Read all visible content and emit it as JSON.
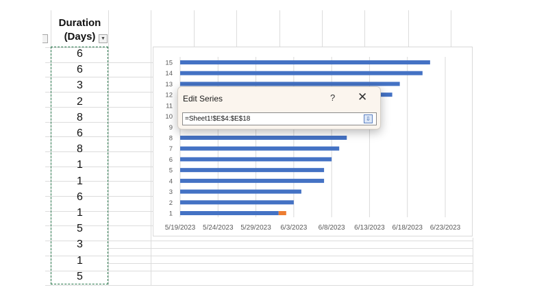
{
  "sheet": {
    "header": {
      "line1": "Duration",
      "line2": "(Days)"
    },
    "durations": [
      "6",
      "6",
      "3",
      "2",
      "8",
      "6",
      "8",
      "1",
      "1",
      "6",
      "1",
      "5",
      "3",
      "1",
      "5"
    ]
  },
  "chart_data": {
    "type": "bar",
    "orientation": "horizontal",
    "stacked": true,
    "categories": [
      "1",
      "2",
      "3",
      "4",
      "5",
      "6",
      "7",
      "8",
      "9",
      "10",
      "11",
      "12",
      "13",
      "14",
      "15"
    ],
    "x_tick_labels": [
      "5/19/2023",
      "5/24/2023",
      "5/29/2023",
      "6/3/2023",
      "6/8/2023",
      "6/13/2023",
      "6/18/2023",
      "6/23/2023"
    ],
    "xlim": [
      "2023-05-19",
      "2023-06-23"
    ],
    "series": [
      {
        "color": "#4472c4",
        "values": [
          "2023-06-01",
          "2023-06-03",
          "2023-06-04",
          "2023-06-07",
          "2023-06-07",
          "2023-06-08",
          "2023-06-09",
          "2023-06-10",
          "2023-06-10",
          "2023-06-11",
          "2023-06-14",
          "2023-06-16",
          "2023-06-17",
          "2023-06-20",
          "2023-06-21"
        ]
      },
      {
        "color": "#ed7d31",
        "values": [
          1,
          0,
          0,
          0,
          0,
          0,
          0,
          0,
          0,
          0,
          0,
          0,
          0,
          0,
          0
        ]
      }
    ],
    "grid": "vertical",
    "legend": "none"
  },
  "dialog": {
    "title": "Edit Series",
    "help": "?",
    "close": "✕",
    "formula": "=Sheet1!$E$4:$E$18",
    "collapse_icon": "range-select-icon"
  }
}
